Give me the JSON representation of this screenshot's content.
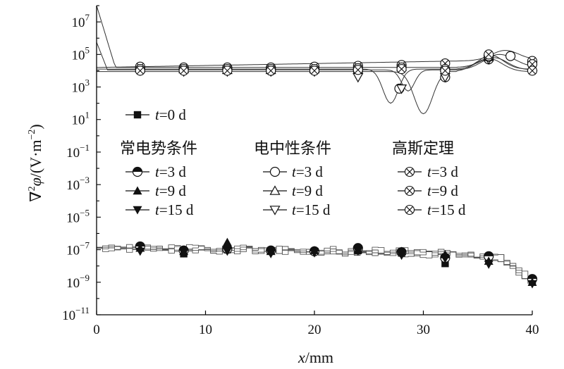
{
  "chart_data": {
    "type": "line",
    "xlabel_var": "x",
    "xlabel_unit": "/mm",
    "ylabel_pre": "∇",
    "ylabel_exp": "2",
    "ylabel_var": "φ",
    "ylabel_post": "/(V·m",
    "ylabel_unit_exp": "−2",
    "ylabel_close": ")",
    "xlim": [
      0,
      40
    ],
    "ylim_log10": [
      -11,
      8
    ],
    "xticks": [
      0,
      10,
      20,
      30,
      40
    ],
    "yticks": [
      {
        "base": "10",
        "exp": "7",
        "v": 7
      },
      {
        "base": "10",
        "exp": "5",
        "v": 5
      },
      {
        "base": "10",
        "exp": "3",
        "v": 3
      },
      {
        "base": "10",
        "exp": "1",
        "v": 1
      },
      {
        "base": "10",
        "exp": "−1",
        "v": -1
      },
      {
        "base": "10",
        "exp": "−3",
        "v": -3
      },
      {
        "base": "10",
        "exp": "−5",
        "v": -5
      },
      {
        "base": "10",
        "exp": "−7",
        "v": -7
      },
      {
        "base": "10",
        "exp": "−9",
        "v": -9
      },
      {
        "base": "10",
        "exp": "−11",
        "v": -11
      }
    ],
    "legend": {
      "t0_label": "=0 d",
      "groups": [
        {
          "title": "常电势条件",
          "marker": "circle-half"
        },
        {
          "title": "电中性条件",
          "marker": "open"
        },
        {
          "title": "高斯定理",
          "marker": "cross"
        }
      ],
      "entries": [
        "=3 d",
        "=9 d",
        "=15 d"
      ],
      "t_var": "t"
    },
    "series": [
      {
        "name": "=0 d",
        "marker": "square",
        "x": [
          4,
          8,
          12,
          16,
          20,
          24,
          28,
          32,
          36,
          40
        ],
        "log10_y": [
          -6.85,
          -7.25,
          -7.0,
          -7.05,
          -7.1,
          -7.05,
          -7.2,
          -7.85,
          -7.55,
          -8.95
        ]
      },
      {
        "name": "=3 d",
        "marker": "circle-half",
        "x": [
          4,
          8,
          12,
          16,
          20,
          24,
          28,
          32,
          36,
          40
        ],
        "log10_y": [
          -6.8,
          -7.05,
          -6.95,
          -7.05,
          -7.1,
          -6.9,
          -7.15,
          -7.5,
          -7.4,
          -8.8
        ]
      },
      {
        "name": "=9 d",
        "marker": "triangle-up",
        "x": [
          4,
          8,
          12,
          16,
          20,
          24,
          28,
          32,
          36,
          40
        ],
        "log10_y": [
          -6.9,
          -7.1,
          -6.55,
          -7.1,
          -7.05,
          -7.0,
          -7.1,
          -7.3,
          -7.7,
          -9.0
        ]
      },
      {
        "name": "=15 d",
        "marker": "triangle-down",
        "x": [
          4,
          8,
          12,
          16,
          20,
          24,
          28,
          32,
          36,
          40
        ],
        "log10_y": [
          -7.1,
          -7.2,
          -7.1,
          -7.25,
          -7.2,
          -7.1,
          -7.35,
          -7.55,
          -7.9,
          -9.1
        ]
      },
      {
        "name": "=3 d",
        "marker": "open-circle",
        "x": [
          0,
          0.5,
          1,
          2,
          4,
          8,
          12,
          16,
          20,
          24,
          27.8,
          32,
          36,
          38,
          40
        ],
        "log10_y": [
          6.0,
          5.2,
          4.4,
          4.2,
          4.1,
          4.1,
          4.05,
          4.0,
          4.05,
          4.0,
          2.9,
          3.6,
          4.7,
          4.9,
          4.4
        ]
      },
      {
        "name": "=9 d",
        "marker": "open-triangle-up",
        "x": [
          4,
          8,
          12,
          16,
          20,
          24,
          28,
          32,
          36,
          40
        ],
        "log10_y": [
          4.15,
          4.1,
          4.05,
          4.05,
          4.1,
          4.05,
          4.25,
          4.2,
          4.85,
          4.25
        ]
      },
      {
        "name": "=15 d",
        "marker": "open-triangle-down",
        "x": [
          4,
          8,
          12,
          16,
          20,
          24,
          28,
          32,
          36,
          40
        ],
        "log10_y": [
          4.0,
          3.95,
          3.95,
          3.95,
          3.95,
          3.6,
          2.9,
          3.6,
          4.7,
          4.3
        ]
      },
      {
        "name": "=3 d",
        "marker": "cross-x",
        "x": [
          0,
          1,
          2,
          4,
          8,
          12,
          16,
          20,
          24,
          28,
          32,
          36,
          40
        ],
        "log10_y": [
          7.8,
          5.8,
          4.6,
          4.25,
          4.2,
          4.2,
          4.2,
          4.25,
          4.3,
          4.35,
          4.45,
          4.85,
          4.6
        ]
      },
      {
        "name": "=9 d",
        "marker": "cross-x",
        "x": [
          4,
          8,
          12,
          16,
          20,
          24,
          28,
          32,
          36,
          40
        ],
        "log10_y": [
          4.1,
          4.1,
          4.1,
          4.1,
          4.1,
          4.15,
          4.2,
          4.1,
          4.9,
          4.4
        ]
      },
      {
        "name": "=15 d",
        "marker": "cross-x",
        "x": [
          4,
          8,
          12,
          16,
          20,
          24,
          28,
          32,
          36,
          40
        ],
        "log10_y": [
          4.0,
          4.0,
          4.0,
          4.0,
          4.0,
          4.05,
          4.1,
          4.0,
          5.0,
          4.0
        ]
      }
    ]
  }
}
